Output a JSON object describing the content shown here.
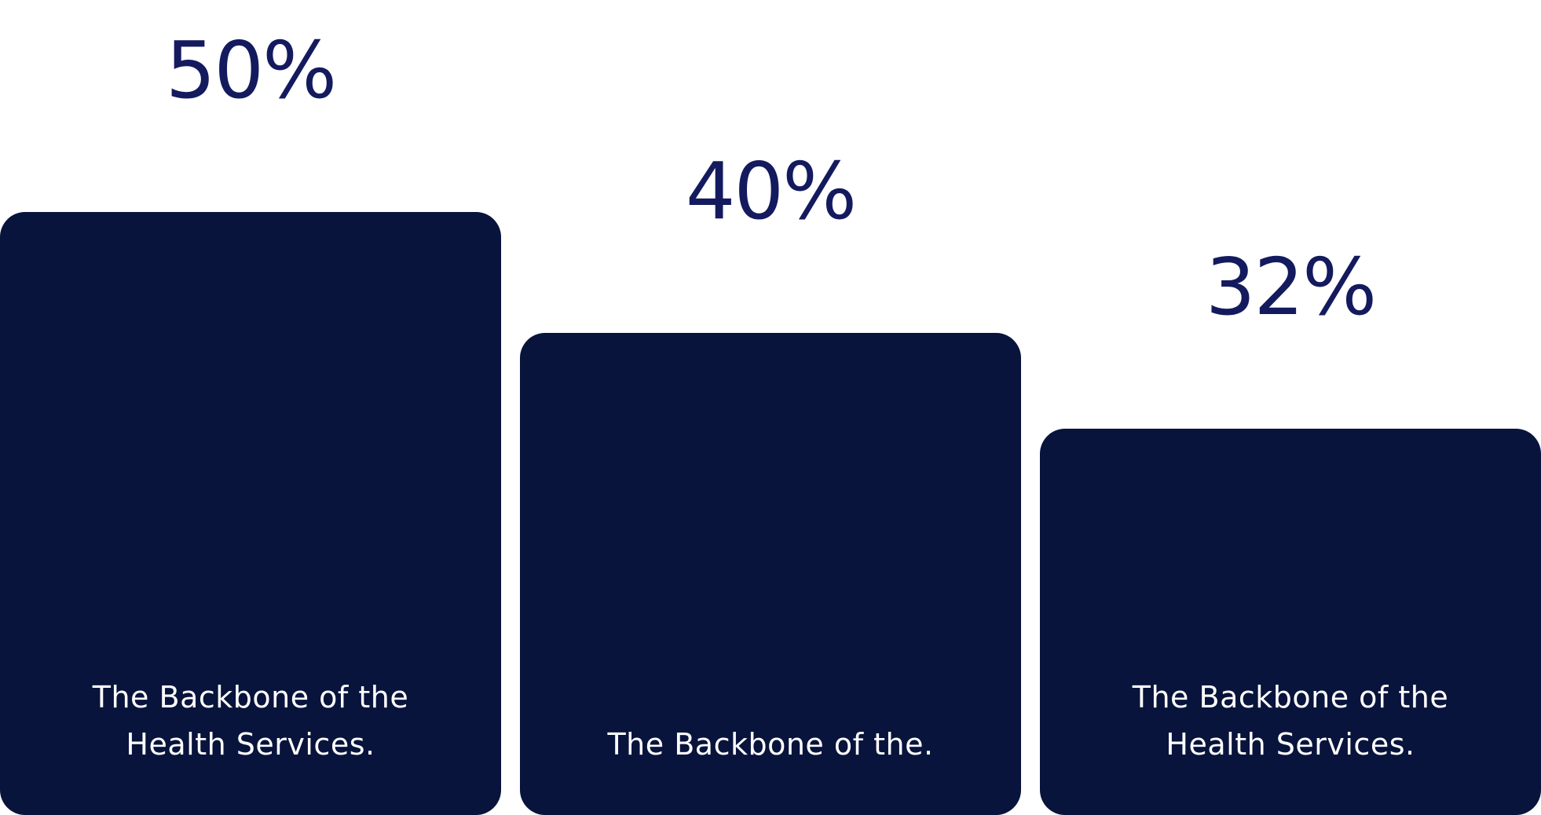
{
  "chart_data": {
    "type": "bar",
    "categories": [
      "The Backbone of the Health Services.",
      "The Backbone of the.",
      "The Backbone of the Health Services."
    ],
    "values": [
      50,
      40,
      32
    ],
    "value_labels": [
      "50%",
      "40%",
      "32%"
    ],
    "title": "",
    "xlabel": "",
    "ylabel": "",
    "ylim": [
      0,
      50
    ],
    "grid": false,
    "legend": "none"
  },
  "colors": {
    "bar": "#09143c",
    "value_text": "#141a5e",
    "caption_text": "#ffffff",
    "background": "#ffffff"
  }
}
